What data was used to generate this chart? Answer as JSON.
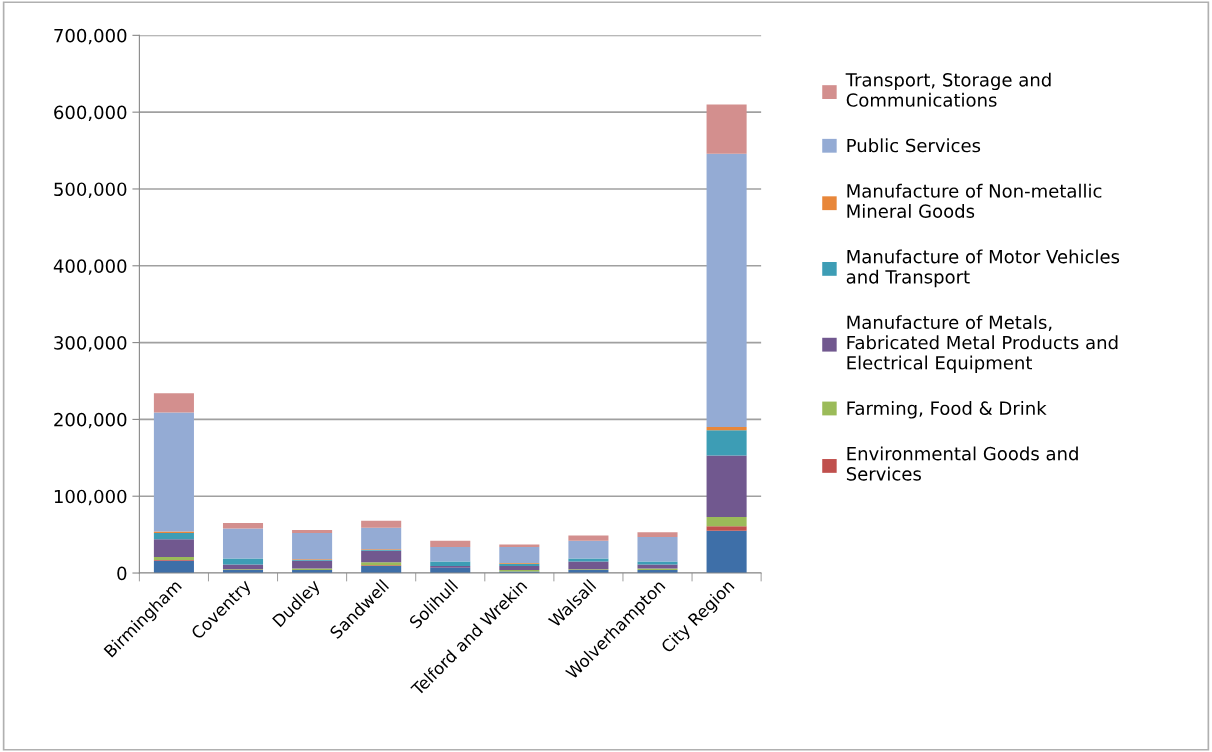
{
  "chart_data": {
    "type": "bar",
    "stacked": true,
    "categories": [
      "Birmingham",
      "Coventry",
      "Dudley",
      "Sandwell",
      "Solihull",
      "Telford and Wrekin",
      "Walsall",
      "Wolverhampton",
      "City Region"
    ],
    "series": [
      {
        "color": "#3e6fa8",
        "values": [
          16000,
          4000,
          4000,
          9000,
          7000,
          2000,
          4000,
          4000,
          55000
        ]
      },
      {
        "name": "Environmental Goods and Services",
        "color": "#c0504d",
        "values": [
          1000,
          0,
          0,
          1000,
          0,
          0,
          0,
          0,
          6000
        ]
      },
      {
        "name": "Farming, Food & Drink",
        "color": "#9bbb59",
        "values": [
          4000,
          1000,
          2000,
          4000,
          0,
          2000,
          1000,
          2000,
          12000
        ]
      },
      {
        "name": "Manufacture of Metals, Fabricated Metal Products and Electrical Equipment",
        "color": "#71588f",
        "values": [
          23000,
          6000,
          10000,
          15000,
          2000,
          5000,
          10000,
          5000,
          80000
        ]
      },
      {
        "name": "Manufacture of Motor Vehicles and Transport",
        "color": "#3d9db5",
        "values": [
          8000,
          8000,
          1000,
          1000,
          6000,
          3000,
          4000,
          4000,
          33000
        ]
      },
      {
        "name": "Manufacture of Non-metallic Mineral Goods",
        "color": "#e8873a",
        "values": [
          2000,
          null,
          1000,
          1000,
          0,
          1000,
          0,
          0,
          4000
        ]
      },
      {
        "name": "Public Services",
        "color": "#94abd4",
        "values": [
          155000,
          39000,
          34000,
          28000,
          19000,
          21000,
          23000,
          32000,
          356000
        ]
      },
      {
        "name": "Transport, Storage and Communications",
        "color": "#d38f8e",
        "values": [
          25000,
          7000,
          4000,
          9000,
          8000,
          3000,
          7000,
          6000,
          64000
        ]
      }
    ],
    "ylim": [
      0,
      700000
    ],
    "yticks": [
      {
        "value": 0,
        "label": "0"
      },
      {
        "value": 100000,
        "label": "100,000"
      },
      {
        "value": 200000,
        "label": "200,000"
      },
      {
        "value": 300000,
        "label": "300,000"
      },
      {
        "value": 400000,
        "label": "400,000"
      },
      {
        "value": 500000,
        "label": "500,000"
      },
      {
        "value": 600000,
        "label": "600,000"
      },
      {
        "value": 700000,
        "label": "700,000"
      }
    ],
    "grid": "y",
    "legend": "right"
  }
}
